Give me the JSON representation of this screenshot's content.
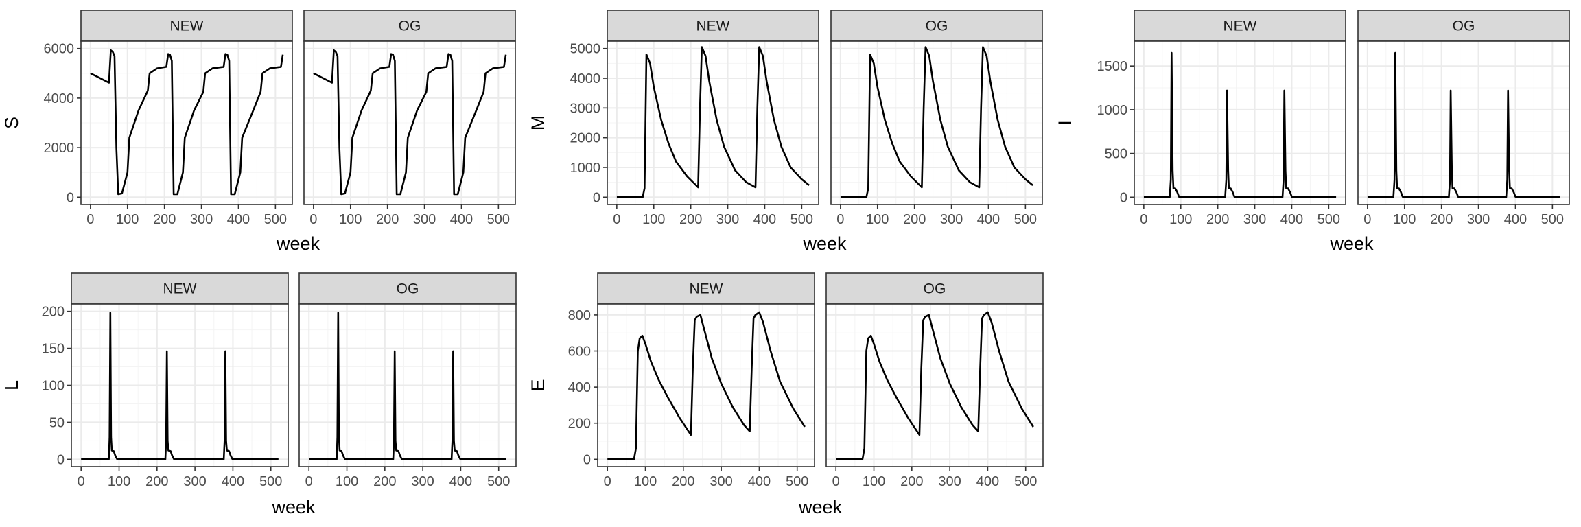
{
  "chart_data": [
    {
      "type": "line",
      "variable": "S",
      "xlabel": "week",
      "ylabel": "S",
      "xlim": [
        0,
        520
      ],
      "ylim": [
        0,
        6000
      ],
      "xticks": [
        0,
        100,
        200,
        300,
        400,
        500
      ],
      "yticks": [
        0,
        2000,
        4000,
        6000
      ],
      "yticklabels": [
        "0",
        "2000",
        "4000",
        "6000"
      ],
      "facets": [
        "NEW",
        "OG"
      ],
      "series": [
        {
          "name": "NEW",
          "x": [
            0,
            50,
            55,
            60,
            65,
            70,
            75,
            85,
            100,
            105,
            130,
            155,
            160,
            180,
            205,
            210,
            215,
            220,
            225,
            235,
            250,
            255,
            280,
            305,
            310,
            330,
            360,
            365,
            370,
            375,
            380,
            390,
            405,
            410,
            440,
            460,
            465,
            485,
            515,
            520
          ],
          "y": [
            5000,
            4620,
            5930,
            5870,
            5700,
            2000,
            120,
            150,
            1000,
            2400,
            3500,
            4300,
            5000,
            5200,
            5260,
            5780,
            5750,
            5500,
            120,
            120,
            1000,
            2400,
            3500,
            4250,
            5000,
            5200,
            5260,
            5780,
            5750,
            5500,
            120,
            120,
            1000,
            2400,
            3500,
            4250,
            5000,
            5200,
            5260,
            5750
          ]
        },
        {
          "name": "OG",
          "x": [
            0,
            50,
            55,
            60,
            65,
            70,
            75,
            85,
            100,
            105,
            130,
            155,
            160,
            180,
            205,
            210,
            215,
            220,
            225,
            235,
            250,
            255,
            280,
            305,
            310,
            330,
            360,
            365,
            370,
            375,
            380,
            390,
            405,
            410,
            440,
            460,
            465,
            485,
            515,
            520
          ],
          "y": [
            5000,
            4620,
            5930,
            5870,
            5700,
            2000,
            120,
            150,
            1000,
            2400,
            3500,
            4300,
            5000,
            5200,
            5260,
            5780,
            5750,
            5500,
            120,
            120,
            1000,
            2400,
            3500,
            4250,
            5000,
            5200,
            5260,
            5780,
            5750,
            5500,
            120,
            120,
            1000,
            2400,
            3500,
            4250,
            5000,
            5200,
            5260,
            5750
          ]
        }
      ]
    },
    {
      "type": "line",
      "variable": "M",
      "xlabel": "week",
      "ylabel": "M",
      "xlim": [
        0,
        520
      ],
      "ylim": [
        0,
        5000
      ],
      "xticks": [
        0,
        100,
        200,
        300,
        400,
        500
      ],
      "yticks": [
        0,
        1000,
        2000,
        3000,
        4000,
        5000
      ],
      "yticklabels": [
        "0",
        "1000",
        "2000",
        "3000",
        "4000",
        "5000"
      ],
      "facets": [
        "NEW",
        "OG"
      ],
      "series": [
        {
          "name": "NEW",
          "x": [
            0,
            70,
            75,
            80,
            90,
            100,
            120,
            140,
            160,
            190,
            220,
            225,
            230,
            240,
            250,
            270,
            290,
            320,
            350,
            375,
            380,
            385,
            395,
            405,
            425,
            445,
            470,
            500,
            520
          ],
          "y": [
            0,
            0,
            300,
            4800,
            4500,
            3700,
            2600,
            1800,
            1200,
            700,
            330,
            3000,
            5050,
            4750,
            3900,
            2600,
            1700,
            900,
            500,
            330,
            3000,
            5050,
            4750,
            3900,
            2600,
            1700,
            1000,
            600,
            400
          ]
        },
        {
          "name": "OG",
          "x": [
            0,
            70,
            75,
            80,
            90,
            100,
            120,
            140,
            160,
            190,
            220,
            225,
            230,
            240,
            250,
            270,
            290,
            320,
            350,
            375,
            380,
            385,
            395,
            405,
            425,
            445,
            470,
            500,
            520
          ],
          "y": [
            0,
            0,
            300,
            4800,
            4500,
            3700,
            2600,
            1800,
            1200,
            700,
            330,
            3000,
            5050,
            4750,
            3900,
            2600,
            1700,
            900,
            500,
            330,
            3000,
            5050,
            4750,
            3900,
            2600,
            1700,
            1000,
            600,
            400
          ]
        }
      ]
    },
    {
      "type": "line",
      "variable": "I",
      "xlabel": "week",
      "ylabel": "I",
      "xlim": [
        0,
        520
      ],
      "ylim": [
        0,
        1700
      ],
      "xticks": [
        0,
        100,
        200,
        300,
        400,
        500
      ],
      "yticks": [
        0,
        500,
        1000,
        1500
      ],
      "yticklabels": [
        "0",
        "500",
        "1000",
        "1500"
      ],
      "facets": [
        "NEW",
        "OG"
      ],
      "series": [
        {
          "name": "NEW",
          "x": [
            0,
            70,
            73,
            75,
            78,
            80,
            85,
            90,
            95,
            220,
            223,
            225,
            228,
            230,
            235,
            240,
            245,
            375,
            378,
            380,
            383,
            385,
            390,
            395,
            400,
            520
          ],
          "y": [
            0,
            0,
            200,
            1650,
            300,
            100,
            100,
            60,
            5,
            0,
            200,
            1220,
            300,
            100,
            100,
            60,
            5,
            0,
            200,
            1220,
            300,
            100,
            100,
            60,
            5,
            0
          ]
        },
        {
          "name": "OG",
          "x": [
            0,
            70,
            73,
            75,
            78,
            80,
            85,
            90,
            95,
            220,
            223,
            225,
            228,
            230,
            235,
            240,
            245,
            375,
            378,
            380,
            383,
            385,
            390,
            395,
            400,
            520
          ],
          "y": [
            0,
            0,
            200,
            1650,
            300,
            100,
            100,
            60,
            5,
            0,
            200,
            1220,
            300,
            100,
            100,
            60,
            5,
            0,
            200,
            1220,
            300,
            100,
            100,
            60,
            5,
            0
          ]
        }
      ]
    },
    {
      "type": "line",
      "variable": "L",
      "xlabel": "week",
      "ylabel": "L",
      "xlim": [
        0,
        520
      ],
      "ylim": [
        0,
        200
      ],
      "xticks": [
        0,
        100,
        200,
        300,
        400,
        500
      ],
      "yticks": [
        0,
        50,
        100,
        150,
        200
      ],
      "yticklabels": [
        "0",
        "50",
        "100",
        "150",
        "200"
      ],
      "facets": [
        "NEW",
        "OG"
      ],
      "series": [
        {
          "name": "NEW",
          "x": [
            0,
            73,
            75,
            77,
            79,
            81,
            86,
            90,
            95,
            222,
            224,
            226,
            228,
            230,
            236,
            240,
            245,
            376,
            378,
            380,
            382,
            384,
            390,
            394,
            399,
            520
          ],
          "y": [
            0,
            0,
            30,
            198,
            30,
            12,
            11,
            5,
            0,
            0,
            25,
            146,
            25,
            12,
            11,
            5,
            0,
            0,
            25,
            146,
            25,
            12,
            11,
            5,
            0,
            0
          ]
        },
        {
          "name": "OG",
          "x": [
            0,
            73,
            75,
            77,
            79,
            81,
            86,
            90,
            95,
            222,
            224,
            226,
            228,
            230,
            236,
            240,
            245,
            376,
            378,
            380,
            382,
            384,
            390,
            394,
            399,
            520
          ],
          "y": [
            0,
            0,
            30,
            198,
            30,
            12,
            11,
            5,
            0,
            0,
            25,
            146,
            25,
            12,
            11,
            5,
            0,
            0,
            25,
            146,
            25,
            12,
            11,
            5,
            0,
            0
          ]
        }
      ]
    },
    {
      "type": "line",
      "variable": "E",
      "xlabel": "week",
      "ylabel": "E",
      "xlim": [
        0,
        520
      ],
      "ylim": [
        0,
        820
      ],
      "xticks": [
        0,
        100,
        200,
        300,
        400,
        500
      ],
      "yticks": [
        0,
        200,
        400,
        600,
        800
      ],
      "yticklabels": [
        "0",
        "200",
        "400",
        "600",
        "800"
      ],
      "facets": [
        "NEW",
        "OG"
      ],
      "series": [
        {
          "name": "NEW",
          "x": [
            0,
            70,
            75,
            80,
            85,
            92,
            100,
            115,
            135,
            160,
            190,
            220,
            225,
            230,
            235,
            245,
            255,
            275,
            300,
            330,
            360,
            375,
            380,
            385,
            390,
            400,
            410,
            430,
            455,
            490,
            520
          ],
          "y": [
            0,
            0,
            60,
            600,
            670,
            685,
            640,
            540,
            440,
            340,
            230,
            135,
            500,
            770,
            790,
            800,
            720,
            560,
            420,
            290,
            190,
            155,
            500,
            780,
            800,
            815,
            760,
            600,
            430,
            280,
            180
          ]
        },
        {
          "name": "OG",
          "x": [
            0,
            70,
            75,
            80,
            85,
            92,
            100,
            115,
            135,
            160,
            190,
            220,
            225,
            230,
            235,
            245,
            255,
            275,
            300,
            330,
            360,
            375,
            380,
            385,
            390,
            400,
            410,
            430,
            455,
            490,
            520
          ],
          "y": [
            0,
            0,
            60,
            600,
            670,
            685,
            640,
            540,
            440,
            340,
            230,
            135,
            500,
            770,
            790,
            800,
            720,
            560,
            420,
            290,
            190,
            155,
            500,
            780,
            800,
            815,
            760,
            600,
            430,
            280,
            180
          ]
        }
      ]
    }
  ]
}
